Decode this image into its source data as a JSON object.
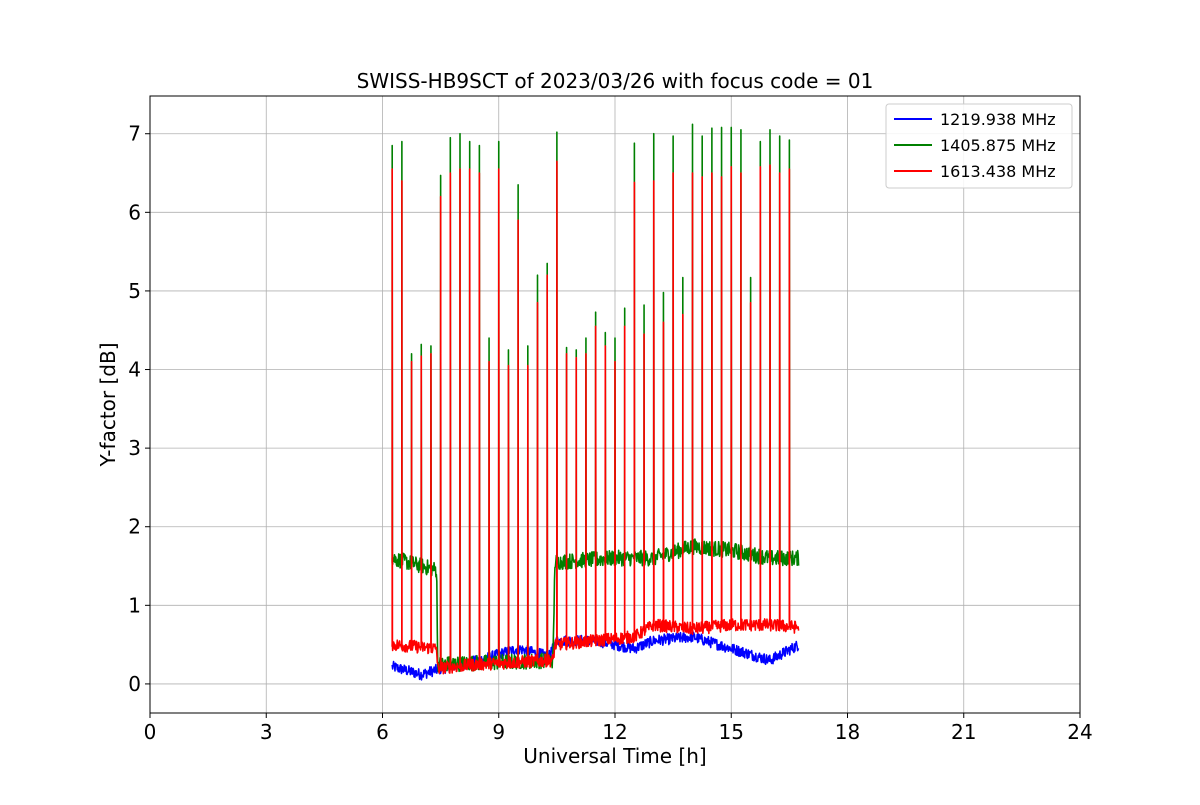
{
  "chart_data": {
    "type": "line",
    "title": "SWISS-HB9SCT of 2023/03/26 with focus code = 01",
    "xlabel": "Universal Time [h]",
    "ylabel": "Y-factor [dB]",
    "xlim": [
      0,
      24
    ],
    "ylim": [
      -0.37,
      7.48
    ],
    "xticks": [
      0,
      3,
      6,
      9,
      12,
      15,
      18,
      21,
      24
    ],
    "yticks": [
      0,
      1,
      2,
      3,
      4,
      5,
      6,
      7
    ],
    "grid": true,
    "legend_position": "top-right",
    "series": [
      {
        "name": "1219.938 MHz",
        "color": "#0000ff",
        "start": 6.25,
        "end": 16.75,
        "baseline": [
          [
            6.25,
            0.22
          ],
          [
            7.0,
            0.12
          ],
          [
            7.4,
            0.18
          ],
          [
            8.5,
            0.3
          ],
          [
            9.5,
            0.45
          ],
          [
            10.3,
            0.35
          ],
          [
            10.5,
            0.55
          ],
          [
            11.5,
            0.55
          ],
          [
            12.5,
            0.45
          ],
          [
            13.0,
            0.55
          ],
          [
            14.0,
            0.6
          ],
          [
            15.0,
            0.45
          ],
          [
            16.0,
            0.3
          ],
          [
            16.75,
            0.5
          ]
        ],
        "noise": 0.07,
        "spikes": []
      },
      {
        "name": "1405.875 MHz",
        "color": "#008000",
        "start": 6.25,
        "end": 16.75,
        "baseline": [
          [
            6.25,
            1.6
          ],
          [
            7.4,
            1.45
          ],
          [
            7.42,
            0.25
          ],
          [
            10.4,
            0.3
          ],
          [
            10.45,
            1.55
          ],
          [
            12.0,
            1.6
          ],
          [
            13.0,
            1.6
          ],
          [
            14.0,
            1.75
          ],
          [
            15.0,
            1.7
          ],
          [
            16.0,
            1.6
          ],
          [
            16.75,
            1.6
          ]
        ],
        "noise": 0.1,
        "spikes": [
          [
            6.25,
            6.85
          ],
          [
            6.5,
            6.9
          ],
          [
            6.75,
            4.2
          ],
          [
            7.0,
            4.32
          ],
          [
            7.25,
            4.3
          ],
          [
            7.5,
            6.47
          ],
          [
            7.75,
            6.95
          ],
          [
            8.0,
            7.0
          ],
          [
            8.25,
            6.9
          ],
          [
            8.5,
            6.85
          ],
          [
            8.75,
            4.4
          ],
          [
            9.0,
            6.9
          ],
          [
            9.25,
            4.25
          ],
          [
            9.5,
            6.35
          ],
          [
            9.75,
            4.3
          ],
          [
            10.0,
            5.2
          ],
          [
            10.25,
            5.35
          ],
          [
            10.5,
            7.02
          ],
          [
            10.75,
            4.28
          ],
          [
            11.0,
            4.25
          ],
          [
            11.25,
            4.4
          ],
          [
            11.5,
            4.73
          ],
          [
            11.75,
            4.47
          ],
          [
            12.0,
            4.4
          ],
          [
            12.25,
            4.78
          ],
          [
            12.5,
            6.88
          ],
          [
            12.75,
            4.82
          ],
          [
            13.0,
            7.0
          ],
          [
            13.25,
            4.98
          ],
          [
            13.5,
            6.97
          ],
          [
            13.75,
            5.17
          ],
          [
            14.0,
            7.12
          ],
          [
            14.25,
            6.97
          ],
          [
            14.5,
            7.07
          ],
          [
            14.75,
            7.08
          ],
          [
            15.0,
            7.08
          ],
          [
            15.25,
            7.05
          ],
          [
            15.5,
            5.17
          ],
          [
            15.75,
            6.9
          ],
          [
            16.0,
            7.05
          ],
          [
            16.25,
            6.97
          ],
          [
            16.5,
            6.92
          ]
        ]
      },
      {
        "name": "1613.438 MHz",
        "color": "#ff0000",
        "start": 6.25,
        "end": 16.75,
        "baseline": [
          [
            6.25,
            0.5
          ],
          [
            7.4,
            0.45
          ],
          [
            7.42,
            0.2
          ],
          [
            8.5,
            0.25
          ],
          [
            10.4,
            0.3
          ],
          [
            10.45,
            0.5
          ],
          [
            11.5,
            0.55
          ],
          [
            12.5,
            0.6
          ],
          [
            13.0,
            0.75
          ],
          [
            14.0,
            0.7
          ],
          [
            15.0,
            0.75
          ],
          [
            16.0,
            0.75
          ],
          [
            16.75,
            0.72
          ]
        ],
        "noise": 0.08,
        "spikes": [
          [
            6.25,
            6.55
          ],
          [
            6.5,
            6.4
          ],
          [
            6.75,
            4.1
          ],
          [
            7.0,
            4.17
          ],
          [
            7.25,
            4.2
          ],
          [
            7.5,
            6.2
          ],
          [
            7.75,
            6.5
          ],
          [
            8.0,
            6.55
          ],
          [
            8.25,
            6.55
          ],
          [
            8.5,
            6.5
          ],
          [
            8.75,
            4.1
          ],
          [
            9.0,
            6.55
          ],
          [
            9.25,
            4.05
          ],
          [
            9.5,
            5.9
          ],
          [
            9.75,
            4.05
          ],
          [
            10.0,
            4.85
          ],
          [
            10.25,
            5.2
          ],
          [
            10.5,
            6.65
          ],
          [
            10.75,
            4.2
          ],
          [
            11.0,
            4.15
          ],
          [
            11.25,
            4.2
          ],
          [
            11.5,
            4.55
          ],
          [
            11.75,
            4.3
          ],
          [
            12.0,
            4.1
          ],
          [
            12.25,
            4.55
          ],
          [
            12.5,
            6.38
          ],
          [
            12.75,
            4.45
          ],
          [
            13.0,
            6.4
          ],
          [
            13.25,
            4.6
          ],
          [
            13.5,
            6.5
          ],
          [
            13.75,
            4.7
          ],
          [
            14.0,
            6.5
          ],
          [
            14.25,
            6.45
          ],
          [
            14.5,
            6.5
          ],
          [
            14.75,
            6.45
          ],
          [
            15.0,
            6.58
          ],
          [
            15.25,
            6.5
          ],
          [
            15.5,
            4.85
          ],
          [
            15.75,
            6.58
          ],
          [
            16.0,
            6.6
          ],
          [
            16.25,
            6.5
          ],
          [
            16.5,
            6.55
          ]
        ]
      }
    ]
  }
}
